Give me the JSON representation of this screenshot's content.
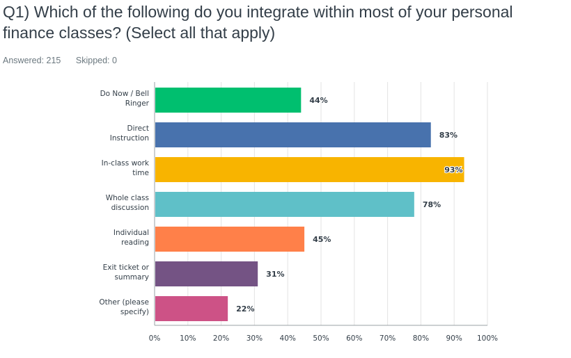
{
  "question": {
    "title": "Q1) Which of the following do you integrate within most of your personal finance classes? (Select all that apply)",
    "answered": "Answered: 215",
    "skipped": "Skipped: 0"
  },
  "chart_data": {
    "type": "bar",
    "orientation": "horizontal",
    "categories": [
      [
        "Do Now / Bell",
        "Ringer"
      ],
      [
        "Direct",
        "Instruction"
      ],
      [
        "In-class work",
        "time"
      ],
      [
        "Whole class",
        "discussion"
      ],
      [
        "Individual",
        "reading"
      ],
      [
        "Exit ticket or",
        "summary"
      ],
      [
        "Other (please",
        "specify)"
      ]
    ],
    "values": [
      44,
      83,
      93,
      78,
      45,
      31,
      22
    ],
    "value_labels": [
      "44%",
      "83%",
      "93%",
      "78%",
      "45%",
      "31%",
      "22%"
    ],
    "colors": [
      "#00bf6f",
      "#4872ad",
      "#f8b400",
      "#5fc0c8",
      "#ff8049",
      "#745384",
      "#cd5286"
    ],
    "xlim": [
      0,
      100
    ],
    "x_ticks": [
      0,
      10,
      20,
      30,
      40,
      50,
      60,
      70,
      80,
      90,
      100
    ],
    "x_tick_labels": [
      "0%",
      "10%",
      "20%",
      "30%",
      "40%",
      "50%",
      "60%",
      "70%",
      "80%",
      "90%",
      "100%"
    ],
    "grid": true,
    "title": "",
    "xlabel": "",
    "ylabel": ""
  }
}
